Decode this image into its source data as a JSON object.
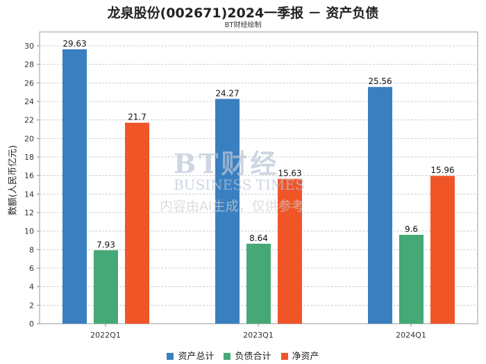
{
  "chart_data": {
    "type": "bar",
    "title": "龙泉股份(002671)2024一季报 － 资产负债",
    "subtitle": "BT财经绘制",
    "xlabel": "",
    "ylabel": "数额(人民币亿元)",
    "ylim": [
      0,
      31.5
    ],
    "yticks": [
      0,
      2,
      4,
      6,
      8,
      10,
      12,
      14,
      16,
      18,
      20,
      22,
      24,
      26,
      28,
      30
    ],
    "grid": true,
    "legend_position": "bottom",
    "categories": [
      "2022Q1",
      "2023Q1",
      "2024Q1"
    ],
    "series": [
      {
        "name": "资产总计",
        "color": "#3a7fc0",
        "values": [
          29.63,
          24.27,
          25.56
        ],
        "labels": [
          "29.63",
          "24.27",
          "25.56"
        ]
      },
      {
        "name": "负债合计",
        "color": "#45a877",
        "values": [
          7.93,
          8.64,
          9.6
        ],
        "labels": [
          "7.93",
          "8.64",
          "9.6"
        ]
      },
      {
        "name": "净资产",
        "color": "#f05528",
        "values": [
          21.7,
          15.63,
          15.96
        ],
        "labels": [
          "21.7",
          "15.63",
          "15.96"
        ]
      }
    ]
  },
  "watermark": {
    "line1": "BT财经",
    "line2": "BUSINESS TIMES",
    "line3": "内容由AI生成，仅供参考"
  }
}
